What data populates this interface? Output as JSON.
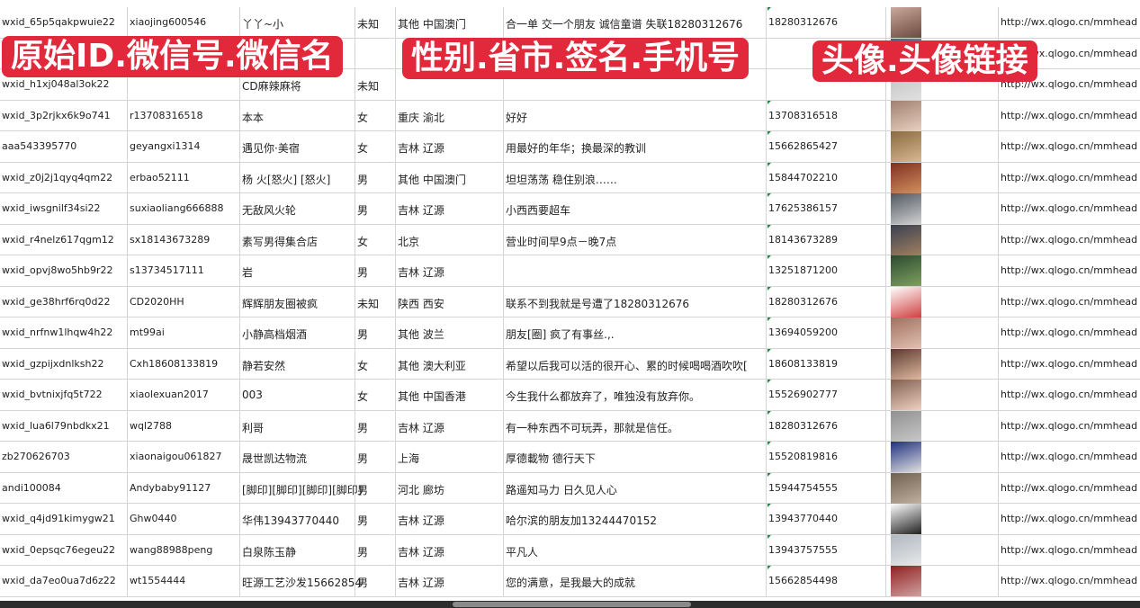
{
  "overlay_labels": [
    "原始ID.微信号.微信名",
    "性别.省市.签名.手机号",
    "头像.头像链接"
  ],
  "colors": {
    "label_bg": "#e2283b",
    "grid": "#d4d4d4"
  },
  "rows": [
    {
      "id": "wxid_65p5qakpwuie22",
      "wechat": "xiaojing600546",
      "name": "丫丫~小",
      "gender": "未知",
      "region": "其他 中国澳门",
      "signature": "合一单 交一个朋友 诚信童谱 失联18280312676",
      "phone": "18280312676",
      "link": "http://wx.qlogo.cn/mmhead"
    },
    {
      "id": "",
      "wechat": "",
      "name": "",
      "gender": "",
      "region": "",
      "signature": "",
      "phone": "",
      "link": "http://wx.qlogo.cn/mmhead"
    },
    {
      "id": "wxid_h1xj048al3ok22",
      "wechat": "",
      "name": "CD麻辣麻将",
      "gender": "未知",
      "region": "",
      "signature": "",
      "phone": "",
      "link": "http://wx.qlogo.cn/mmhead"
    },
    {
      "id": "wxid_3p2rjkx6k9o741",
      "wechat": "r13708316518",
      "name": "本本",
      "gender": "女",
      "region": "重庆 渝北",
      "signature": "好好",
      "phone": "13708316518",
      "link": "http://wx.qlogo.cn/mmhead"
    },
    {
      "id": "aaa543395770",
      "wechat": "geyangxi1314",
      "name": "遇见你·美宿",
      "gender": "女",
      "region": "吉林 辽源",
      "signature": "用最好的年华；换最深的教训",
      "phone": "15662865427",
      "link": "http://wx.qlogo.cn/mmhead"
    },
    {
      "id": "wxid_z0j2j1qyq4qm22",
      "wechat": "erbao52111",
      "name": "杨 火[怒火] [怒火]",
      "gender": "男",
      "region": "其他 中国澳门",
      "signature": "坦坦荡荡 稳住别浪……",
      "phone": "15844702210",
      "link": "http://wx.qlogo.cn/mmhead"
    },
    {
      "id": "wxid_iwsgnilf34si22",
      "wechat": "suxiaoliang666888",
      "name": "无敌风火轮",
      "gender": "男",
      "region": "吉林 辽源",
      "signature": "小西西要超车",
      "phone": "17625386157",
      "link": "http://wx.qlogo.cn/mmhead"
    },
    {
      "id": "wxid_r4nelz617qgm12",
      "wechat": "sx18143673289",
      "name": "素写男得集合店",
      "gender": "女",
      "region": "北京",
      "signature": "营业时间早9点－晚7点",
      "phone": "18143673289",
      "link": "http://wx.qlogo.cn/mmhead"
    },
    {
      "id": "wxid_opvj8wo5hb9r22",
      "wechat": "s13734517111",
      "name": "岩",
      "gender": "男",
      "region": "吉林 辽源",
      "signature": "",
      "phone": "13251871200",
      "link": "http://wx.qlogo.cn/mmhead"
    },
    {
      "id": "wxid_ge38hrf6rq0d22",
      "wechat": "CD2020HH",
      "name": "辉辉朋友圈被疯",
      "gender": "未知",
      "region": "陕西 西安",
      "signature": "联系不到我就是号遭了18280312676",
      "phone": "18280312676",
      "link": "http://wx.qlogo.cn/mmhead"
    },
    {
      "id": "wxid_nrfnw1lhqw4h22",
      "wechat": "mt99ai",
      "name": "小静高档烟酒",
      "gender": "男",
      "region": "其他 波兰",
      "signature": "朋友[圈] 疯了有事丝.,.",
      "phone": "13694059200",
      "link": "http://wx.qlogo.cn/mmhead"
    },
    {
      "id": "wxid_gzpijxdnlksh22",
      "wechat": "Cxh18608133819",
      "name": "静若安然",
      "gender": "女",
      "region": "其他 澳大利亚",
      "signature": "希望以后我可以活的很开心、累的时候喝喝酒吹吹[",
      "phone": "18608133819",
      "link": "http://wx.qlogo.cn/mmhead"
    },
    {
      "id": "wxid_bvtnixjfq5t722",
      "wechat": "xiaolexuan2017",
      "name": "003",
      "gender": "女",
      "region": "其他 中国香港",
      "signature": "今生我什么都放弃了，唯独没有放弃你。",
      "phone": "15526902777",
      "link": "http://wx.qlogo.cn/mmhead"
    },
    {
      "id": "wxid_lua6l79nbdkx21",
      "wechat": "wql2788",
      "name": "利哥",
      "gender": "男",
      "region": "吉林 辽源",
      "signature": "有一种东西不可玩弄，那就是信任。",
      "phone": "18280312676",
      "link": "http://wx.qlogo.cn/mmhead"
    },
    {
      "id": "zb270626703",
      "wechat": "xiaonaigou061827",
      "name": "晟世凯达物流",
      "gender": "男",
      "region": "上海",
      "signature": "厚德載物 德行天下",
      "phone": "15520819816",
      "link": "http://wx.qlogo.cn/mmhead"
    },
    {
      "id": "andi100084",
      "wechat": "Andybaby91127",
      "name": "[脚印][脚印][脚印][脚印]",
      "gender": "男",
      "region": "河北 廊坊",
      "signature": "路遥知马力 日久见人心",
      "phone": "15944754555",
      "link": "http://wx.qlogo.cn/mmhead"
    },
    {
      "id": "wxid_q4jd91kimygw21",
      "wechat": "Ghw0440",
      "name": "华伟13943770440",
      "gender": "男",
      "region": "吉林 辽源",
      "signature": "哈尔滨的朋友加13244470152",
      "phone": "13943770440",
      "link": "http://wx.qlogo.cn/mmhead"
    },
    {
      "id": "wxid_0epsqc76egeu22",
      "wechat": "wang88988peng",
      "name": "白泉陈玉静",
      "gender": "男",
      "region": "吉林 辽源",
      "signature": "平凡人",
      "phone": "13943757555",
      "link": "http://wx.qlogo.cn/mmhead"
    },
    {
      "id": "wxid_da7eo0ua7d6z22",
      "wechat": "wt1554444",
      "name": "旺源工艺沙发15662854",
      "gender": "男",
      "region": "吉林 辽源",
      "signature": "您的满意，是我最大的成就",
      "phone": "15662854498",
      "link": "http://wx.qlogo.cn/mmhead"
    }
  ]
}
